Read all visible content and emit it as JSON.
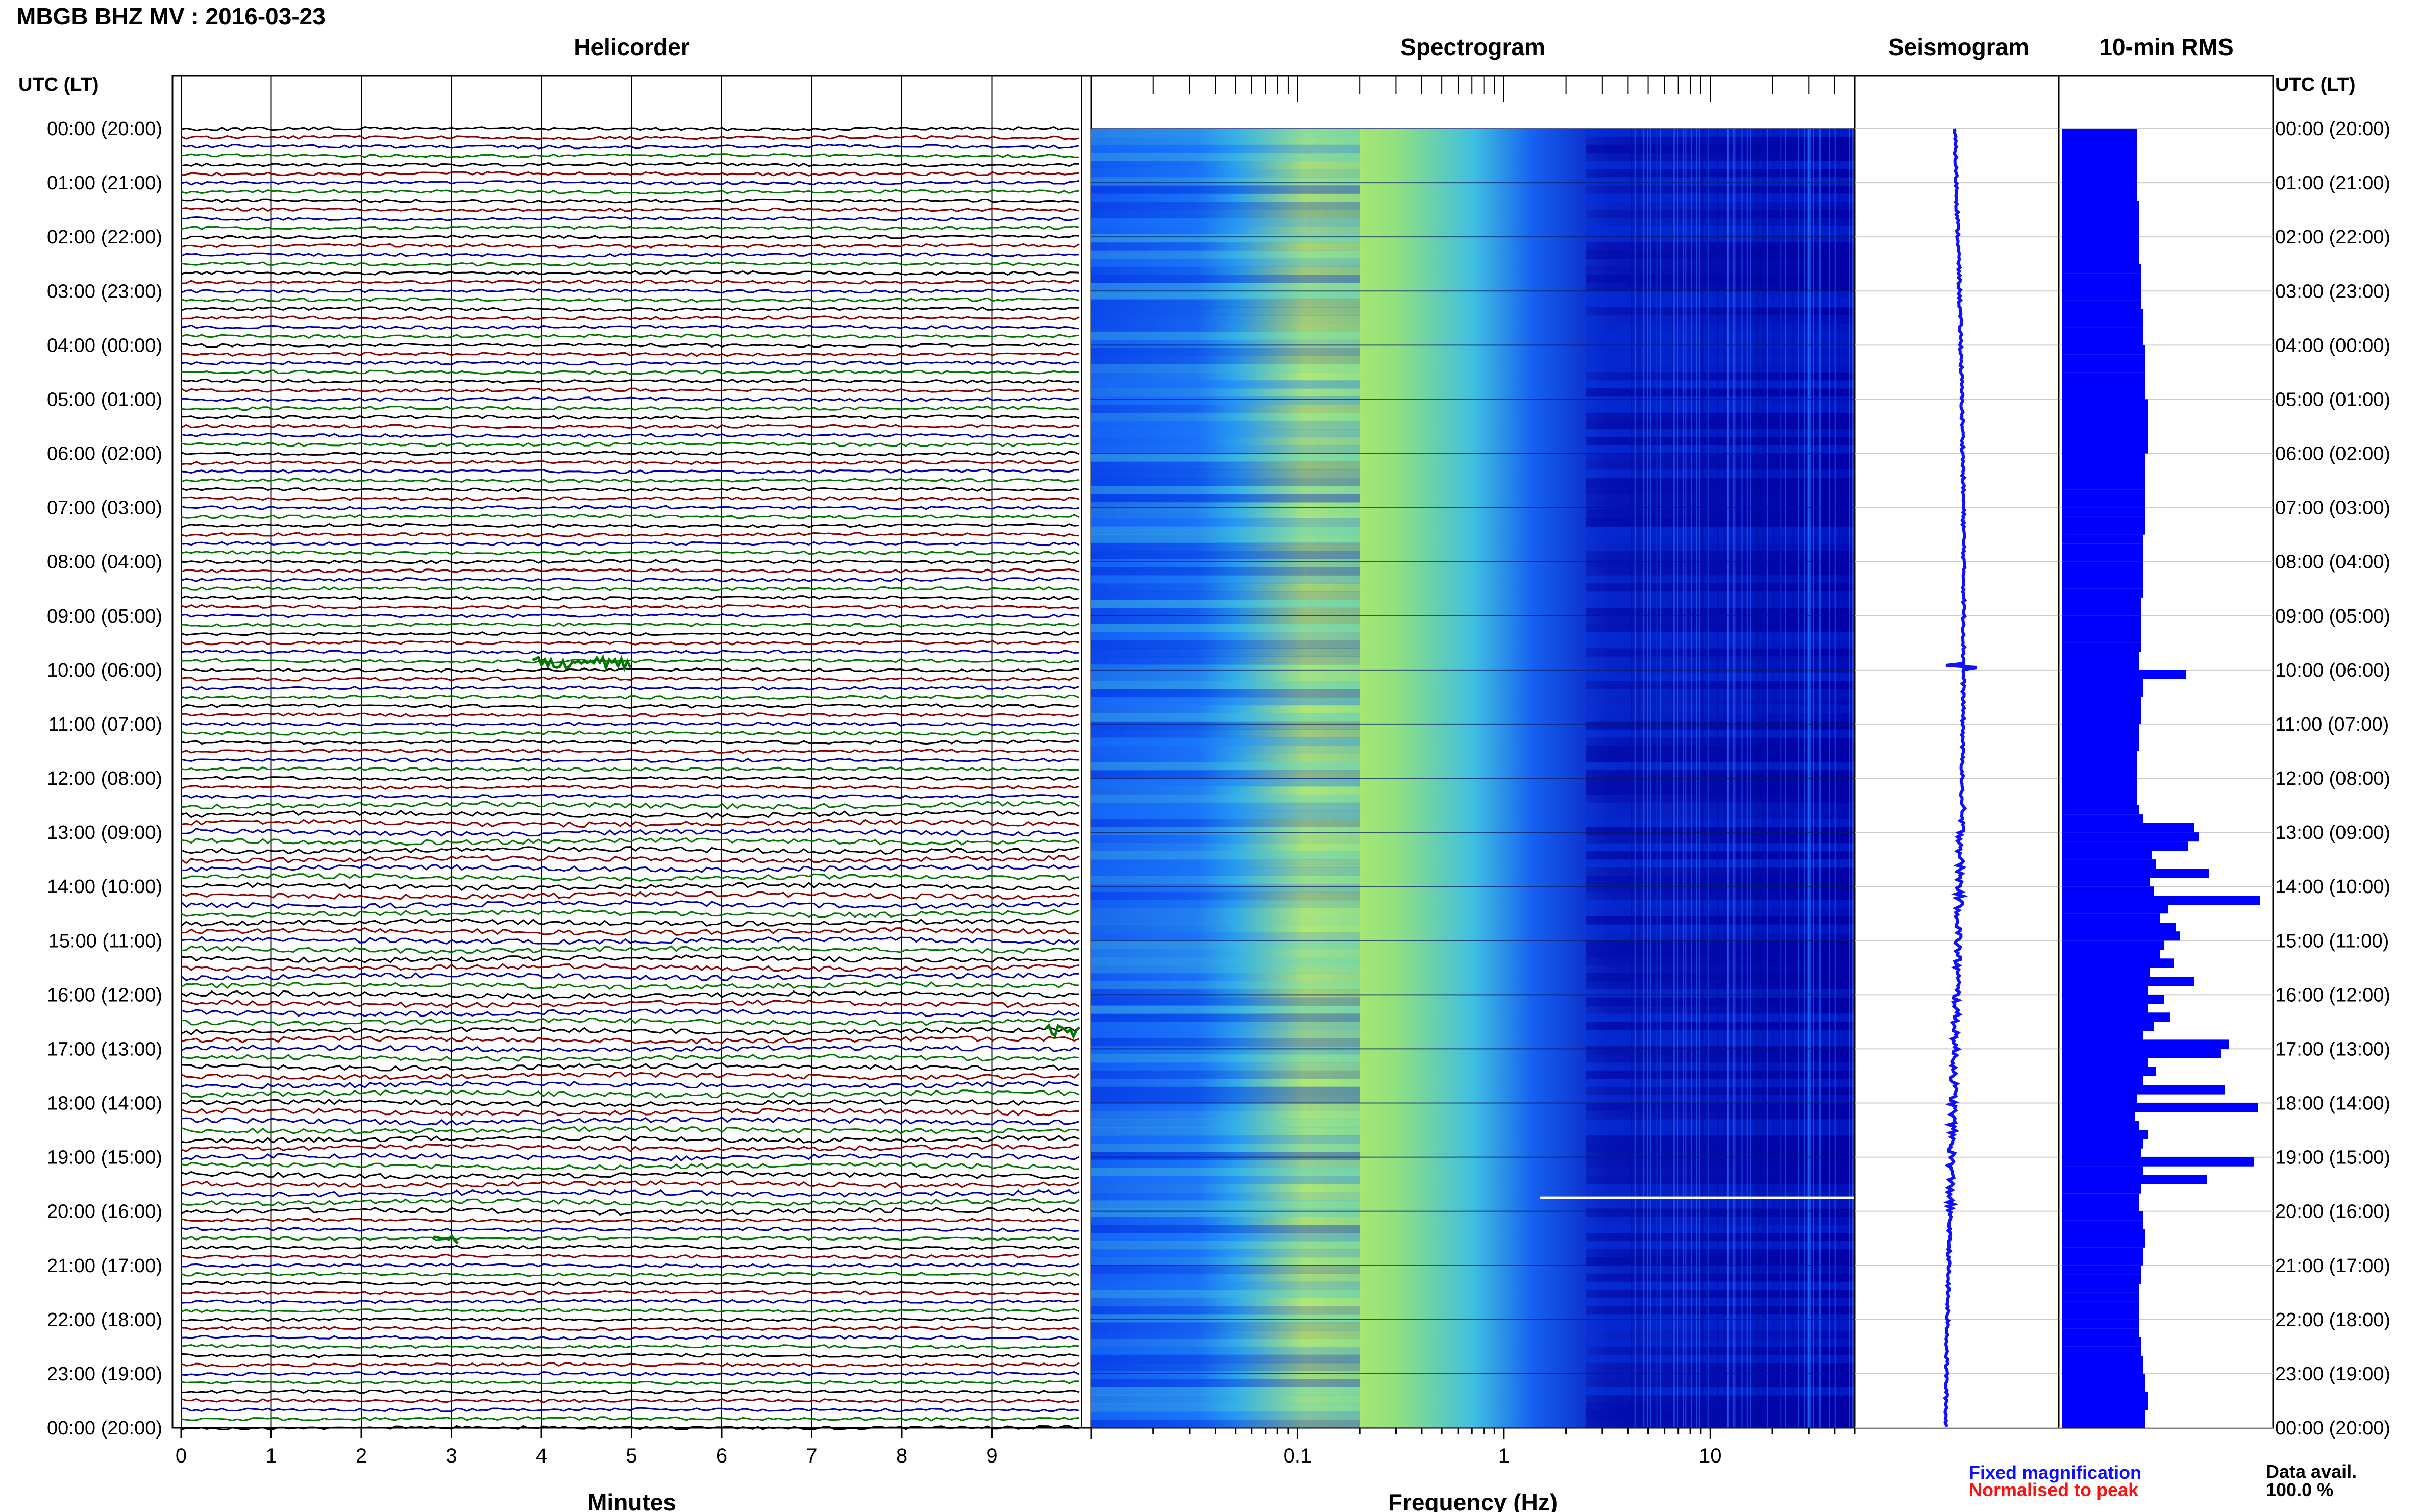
{
  "figure": {
    "title": "MBGB BHZ MV : 2016-03-23",
    "time_axis_label": "UTC (LT)",
    "footer": {
      "fixed_label": "Fixed magnification",
      "normalised_label": "Normalised to peak",
      "avail_label": "Data avail.",
      "avail_value": "100.0 %"
    },
    "colors": {
      "fixed": "#1010ff",
      "normalised": "#ff1010",
      "trace_cycle": [
        "#000000",
        "#8b0000",
        "#0000aa",
        "#007700"
      ],
      "bar": "#0000ff"
    }
  },
  "chart_data": [
    {
      "type": "line",
      "title": "Helicorder",
      "xlabel": "Minutes",
      "x_ticks": [
        "0",
        "1",
        "2",
        "3",
        "4",
        "5",
        "6",
        "7",
        "8",
        "9"
      ],
      "xlim": [
        0,
        10
      ],
      "rows_per_hour": 6,
      "y_ticks": [
        "00:00 (20:00)",
        "01:00 (21:00)",
        "02:00 (22:00)",
        "03:00 (23:00)",
        "04:00 (00:00)",
        "05:00 (01:00)",
        "06:00 (02:00)",
        "07:00 (03:00)",
        "08:00 (04:00)",
        "09:00 (05:00)",
        "10:00 (06:00)",
        "11:00 (07:00)",
        "12:00 (08:00)",
        "13:00 (09:00)",
        "14:00 (10:00)",
        "15:00 (11:00)",
        "16:00 (12:00)",
        "17:00 (13:00)",
        "18:00 (14:00)",
        "19:00 (15:00)",
        "20:00 (16:00)",
        "21:00 (17:00)",
        "22:00 (18:00)",
        "23:00 (19:00)",
        "00:00 (20:00)"
      ],
      "events": [
        {
          "hour": 9.87,
          "minute_start": 3.9,
          "minute_end": 5.0
        },
        {
          "hour": 16.67,
          "minute_start": 9.6,
          "minute_end": 10.0
        },
        {
          "hour": 20.5,
          "minute_start": 2.8,
          "minute_end": 3.1
        }
      ]
    },
    {
      "type": "heatmap",
      "title": "Spectrogram",
      "xlabel": "Frequency (Hz)",
      "x_scale": "log",
      "xlim": [
        0.01,
        50
      ],
      "x_ticks": [
        "0.1",
        "1",
        "10"
      ],
      "colormap": [
        "#0000a0",
        "#0030e0",
        "#1a80ff",
        "#40c0e0",
        "#a0e070",
        "#f0f040"
      ],
      "y_ticks_hours": [
        0,
        24
      ]
    },
    {
      "type": "line",
      "title": "Seismogram",
      "orientation": "vertical"
    },
    {
      "type": "bar",
      "title": "10-min RMS",
      "orientation": "horizontal",
      "xlim": [
        0,
        100
      ],
      "hours": [
        0,
        0.17,
        0.33,
        0.5,
        0.67,
        0.83,
        1,
        1.17,
        1.33,
        1.5,
        1.67,
        1.83,
        2,
        2.17,
        2.33,
        2.5,
        2.67,
        2.83,
        3,
        3.17,
        3.33,
        3.5,
        3.67,
        3.83,
        4,
        4.17,
        4.33,
        4.5,
        4.67,
        4.83,
        5,
        5.17,
        5.33,
        5.5,
        5.67,
        5.83,
        6,
        6.17,
        6.33,
        6.5,
        6.67,
        6.83,
        7,
        7.17,
        7.33,
        7.5,
        7.67,
        7.83,
        8,
        8.17,
        8.33,
        8.5,
        8.67,
        8.83,
        9,
        9.17,
        9.33,
        9.5,
        9.67,
        9.83,
        10,
        10.17,
        10.33,
        10.5,
        10.67,
        10.83,
        11,
        11.17,
        11.33,
        11.5,
        11.67,
        11.83,
        12,
        12.17,
        12.33,
        12.5,
        12.67,
        12.83,
        13,
        13.17,
        13.33,
        13.5,
        13.67,
        13.83,
        14,
        14.17,
        14.33,
        14.5,
        14.67,
        14.83,
        15,
        15.17,
        15.33,
        15.5,
        15.67,
        15.83,
        16,
        16.17,
        16.33,
        16.5,
        16.67,
        16.83,
        17,
        17.17,
        17.33,
        17.5,
        17.67,
        17.83,
        18,
        18.17,
        18.33,
        18.5,
        18.67,
        18.83,
        19,
        19.17,
        19.33,
        19.5,
        19.67,
        19.83,
        20,
        20.17,
        20.33,
        20.5,
        20.67,
        20.83,
        21,
        21.17,
        21.33,
        21.5,
        21.67,
        21.83,
        22,
        22.17,
        22.33,
        22.5,
        22.67,
        22.83,
        23,
        23.17,
        23.33,
        23.5,
        23.67,
        23.83
      ],
      "values": [
        37,
        37,
        37,
        37,
        37,
        37,
        37,
        37,
        38,
        38,
        38,
        38,
        38,
        38,
        38,
        39,
        39,
        39,
        39,
        39,
        40,
        40,
        40,
        40,
        41,
        41,
        41,
        41,
        41,
        41,
        42,
        42,
        42,
        42,
        42,
        42,
        41,
        41,
        41,
        41,
        41,
        41,
        41,
        41,
        41,
        40,
        40,
        40,
        40,
        40,
        40,
        40,
        39,
        39,
        39,
        39,
        39,
        39,
        38,
        38,
        61,
        40,
        40,
        39,
        39,
        39,
        38,
        38,
        38,
        37,
        37,
        37,
        37,
        37,
        37,
        38,
        40,
        65,
        67,
        62,
        44,
        46,
        72,
        43,
        45,
        97,
        52,
        48,
        56,
        58,
        50,
        48,
        55,
        43,
        65,
        42,
        50,
        42,
        53,
        45,
        40,
        82,
        78,
        42,
        46,
        40,
        80,
        37,
        96,
        36,
        38,
        42,
        40,
        39,
        94,
        40,
        71,
        39,
        38,
        38,
        40,
        40,
        41,
        41,
        40,
        40,
        39,
        39,
        38,
        38,
        38,
        38,
        38,
        38,
        39,
        39,
        40,
        40,
        41,
        41,
        42,
        42,
        41,
        41
      ]
    }
  ]
}
